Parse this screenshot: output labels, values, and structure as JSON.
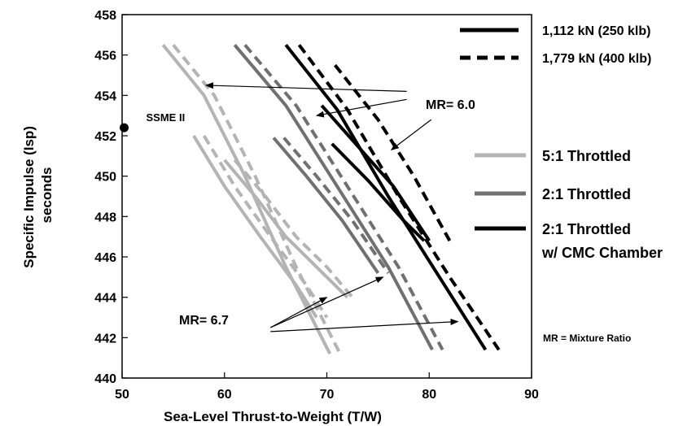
{
  "chart_data": {
    "type": "line",
    "xlabel": "Sea-Level Thrust-to-Weight (T/W)",
    "ylabel_line1": "Specific Impulse (Isp)",
    "ylabel_line2": "seconds",
    "xlim": [
      50,
      90
    ],
    "ylim": [
      440,
      458
    ],
    "x_ticks": [
      "50",
      "60",
      "70",
      "80",
      "90"
    ],
    "y_ticks": [
      "440",
      "442",
      "444",
      "446",
      "448",
      "450",
      "452",
      "454",
      "456",
      "458"
    ],
    "grid": false,
    "legend_thrust": [
      {
        "label": "1,112 kN (250 klb)",
        "style": "solid"
      },
      {
        "label": "1,779 kN (400 klb)",
        "style": "dashed"
      }
    ],
    "legend_throttle": [
      {
        "label": "5:1 Throttled",
        "color": "#b4b4b4"
      },
      {
        "label": "2:1 Throttled",
        "color": "#707070"
      },
      {
        "label_line1": "2:1 Throttled",
        "label_line2": "w/ CMC Chamber",
        "color": "#000000"
      }
    ],
    "point": {
      "label": "SSME II",
      "x": 50.2,
      "y": 452.4
    },
    "annotations": {
      "mr60": "MR= 6.0",
      "mr67": "MR= 6.7",
      "note": "MR = Mixture Ratio"
    },
    "series": [
      {
        "group": "5:1 Throttled",
        "thrust": "1,112 kN",
        "color": "#b4b4b4",
        "dash": "solid",
        "width": 4,
        "x": [
          54,
          58,
          62,
          66,
          70.3
        ],
        "y": [
          456.5,
          454,
          450,
          445.5,
          441.2
        ]
      },
      {
        "group": "5:1 Throttled",
        "thrust": "1,779 kN",
        "color": "#b4b4b4",
        "dash": "dashed",
        "width": 4,
        "x": [
          55,
          59,
          63,
          67,
          71.3
        ],
        "y": [
          456.5,
          454,
          450,
          445.5,
          441.2
        ]
      },
      {
        "group": "5:1 Throttled",
        "thrust": "1,112 kN",
        "color": "#b4b4b4",
        "dash": "solid",
        "width": 4,
        "x": [
          57,
          60,
          63.5,
          67,
          69
        ],
        "y": [
          452,
          449.5,
          447,
          444.6,
          443
        ]
      },
      {
        "group": "5:1 Throttled",
        "thrust": "1,779 kN",
        "color": "#b4b4b4",
        "dash": "dashed",
        "width": 4,
        "x": [
          58,
          61,
          64.5,
          68,
          70
        ],
        "y": [
          452,
          449.5,
          447,
          444.6,
          443
        ]
      },
      {
        "group": "5:1 Throttled",
        "thrust": "1,112 kN",
        "color": "#b4b4b4",
        "dash": "solid",
        "width": 4,
        "x": [
          60,
          63,
          66,
          69,
          72
        ],
        "y": [
          450.8,
          449,
          447,
          445.5,
          444
        ]
      },
      {
        "group": "5:1 Throttled",
        "thrust": "1,779 kN",
        "color": "#b4b4b4",
        "dash": "dashed",
        "width": 4,
        "x": [
          61,
          64,
          67,
          70,
          72.5
        ],
        "y": [
          450.8,
          449,
          447,
          445.5,
          444
        ]
      },
      {
        "group": "2:1 Throttled",
        "thrust": "1,112 kN",
        "color": "#707070",
        "dash": "solid",
        "width": 4,
        "x": [
          61,
          66,
          71,
          76,
          80.3
        ],
        "y": [
          456.5,
          453.5,
          449.5,
          445.5,
          441.4
        ]
      },
      {
        "group": "2:1 Throttled",
        "thrust": "1,779 kN",
        "color": "#707070",
        "dash": "dashed",
        "width": 4,
        "x": [
          62,
          67,
          72,
          77,
          81.3
        ],
        "y": [
          456.5,
          453.5,
          449.5,
          445.5,
          441.4
        ]
      },
      {
        "group": "2:1 Throttled",
        "thrust": "1,112 kN",
        "color": "#707070",
        "dash": "solid",
        "width": 4,
        "x": [
          64.8,
          68,
          71.5,
          75
        ],
        "y": [
          451.9,
          450,
          447.8,
          445.2
        ]
      },
      {
        "group": "2:1 Throttled",
        "thrust": "1,779 kN",
        "color": "#707070",
        "dash": "dashed",
        "width": 4,
        "x": [
          65.8,
          69,
          72.5,
          76
        ],
        "y": [
          451.9,
          450,
          447.8,
          445.2
        ]
      },
      {
        "group": "2:1 Throttled w/ CMC Chamber",
        "thrust": "1,112 kN",
        "color": "#000000",
        "dash": "solid",
        "width": 4,
        "x": [
          66,
          71,
          76,
          81,
          85.5
        ],
        "y": [
          456.5,
          453.3,
          449,
          445,
          441.4
        ]
      },
      {
        "group": "2:1 Throttled w/ CMC Chamber",
        "thrust": "1,779 kN",
        "color": "#000000",
        "dash": "dashed",
        "width": 4,
        "x": [
          67.3,
          72,
          77,
          82,
          86.8
        ],
        "y": [
          456.5,
          453.3,
          449,
          445,
          441.4
        ]
      },
      {
        "group": "2:1 Throttled w/ CMC Chamber",
        "thrust": "1,112 kN",
        "color": "#000000",
        "dash": "solid",
        "width": 4,
        "x": [
          69.5,
          73,
          76.5,
          80
        ],
        "y": [
          453.5,
          451.5,
          449.5,
          446.8
        ]
      },
      {
        "group": "2:1 Throttled w/ CMC Chamber",
        "thrust": "1,779 kN",
        "color": "#000000",
        "dash": "dashed",
        "width": 4,
        "x": [
          70.8,
          75,
          78.5,
          82
        ],
        "y": [
          455.5,
          452.8,
          450,
          446.8
        ]
      },
      {
        "group": "2:1 Throttled w/ CMC Chamber",
        "thrust": "1,112 kN",
        "color": "#000000",
        "dash": "solid",
        "width": 4,
        "x": [
          70.5,
          74,
          77.5,
          79.5
        ],
        "y": [
          451.6,
          449.8,
          447.8,
          446.8
        ]
      }
    ],
    "arrows": [
      {
        "group": "mr60",
        "x1": 77.8,
        "y1": 454.2,
        "x2": 58.2,
        "y2": 454.5
      },
      {
        "group": "mr60",
        "x1": 77.8,
        "y1": 453.8,
        "x2": 69.0,
        "y2": 453.0
      },
      {
        "group": "mr60",
        "x1": 80.2,
        "y1": 452.8,
        "x2": 76.3,
        "y2": 451.3
      },
      {
        "group": "mr67",
        "x1": 64.5,
        "y1": 442.5,
        "x2": 70.0,
        "y2": 444.0
      },
      {
        "group": "mr67",
        "x1": 64.5,
        "y1": 442.5,
        "x2": 75.5,
        "y2": 445.0
      },
      {
        "group": "mr67",
        "x1": 64.5,
        "y1": 442.3,
        "x2": 82.8,
        "y2": 442.8
      }
    ]
  }
}
